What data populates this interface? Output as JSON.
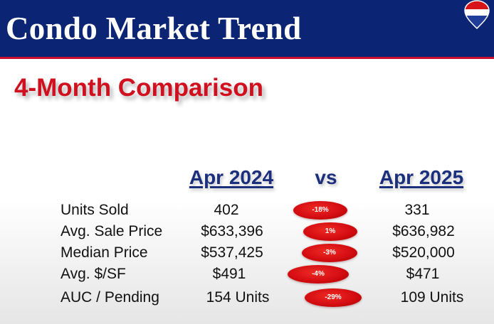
{
  "header": {
    "title": "Condo Market Trend",
    "logo_icon": "remax-balloon-icon",
    "background_color": "#0b2574",
    "accent_color": "#c8102e"
  },
  "subtitle": "4-Month Comparison",
  "columns": {
    "period_a": "Apr 2024",
    "vs": "vs",
    "period_b": "Apr 2025"
  },
  "rows": [
    {
      "label": "Units Sold",
      "apr_2024": "402",
      "change": "-18%",
      "apr_2025": "331"
    },
    {
      "label": "Avg. Sale Price",
      "apr_2024": "$633,396",
      "change": "1%",
      "apr_2025": "$636,982"
    },
    {
      "label": "Median Price",
      "apr_2024": "$537,425",
      "change": "-3%",
      "apr_2025": "$520,000"
    },
    {
      "label": "Avg. $/SF",
      "apr_2024": "$491",
      "change": "-4%",
      "apr_2025": "$471"
    },
    {
      "label": "AUC / Pending",
      "apr_2024": "154 Units",
      "change": "-29%",
      "apr_2025": "109 Units"
    }
  ],
  "colors": {
    "subtitle": "#d0101e",
    "column_headers": "#1b2f7c",
    "change_badge": "#d40d12"
  }
}
